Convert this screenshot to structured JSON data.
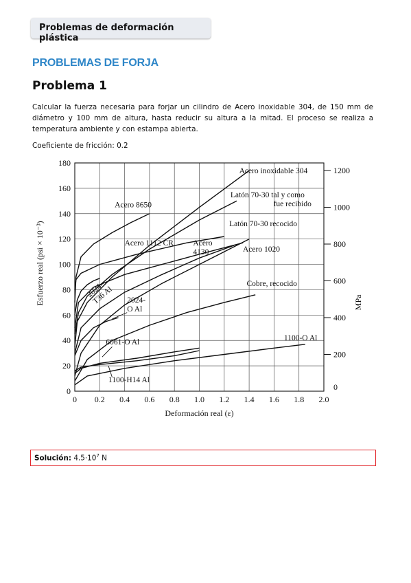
{
  "header": {
    "tab_label": "Problemas de deformación plástica"
  },
  "section": {
    "title": "PROBLEMAS DE FORJA"
  },
  "problem": {
    "title": "Problema 1",
    "statement": "Calcular la fuerza necesaria para forjar un cilindro de Acero inoxidable 304, de 150 mm de diámetro y 100 mm de altura, hasta reducir su altura a la mitad. El proceso se realiza a temperatura ambiente y con estampa abierta.",
    "friction": "Coeficiente de fricción: 0.2"
  },
  "solution": {
    "label": "Solución:",
    "value_base": "4.5·10",
    "value_exp": "7",
    "value_unit": " N"
  },
  "chart_data": {
    "type": "line",
    "xlabel": "Deformación real (ε)",
    "ylabel": "Esfuerzo real (psi × 10⁻³)",
    "y2label": "MPa",
    "xlim": [
      0,
      2.0
    ],
    "ylim": [
      0,
      180
    ],
    "x_ticks": [
      "0",
      "0.2",
      "0.4",
      "0.6",
      "0.8",
      "1.0",
      "1.2",
      "1.4",
      "1.6",
      "1.8",
      "2.0"
    ],
    "y_ticks": [
      "0",
      "20",
      "40",
      "60",
      "80",
      "100",
      "120",
      "140",
      "160",
      "180"
    ],
    "y2_ticks": [
      "200",
      "400",
      "600",
      "800",
      "1000",
      "1200"
    ],
    "grid": true,
    "series": [
      {
        "name": "Acero inoxidable 304",
        "x": [
          0,
          0.02,
          0.1,
          0.3,
          0.6,
          1.0,
          1.4
        ],
        "y": [
          35,
          55,
          70,
          90,
          115,
          145,
          174
        ]
      },
      {
        "name": "Latón 70-30 tal y como fue recibido",
        "x": [
          0,
          0.03,
          0.1,
          0.3,
          0.6,
          1.0,
          1.3
        ],
        "y": [
          45,
          62,
          75,
          92,
          112,
          135,
          150
        ]
      },
      {
        "name": "Latón 70-30 recocido",
        "x": [
          0,
          0.05,
          0.2,
          0.4,
          0.7,
          1.0,
          1.4
        ],
        "y": [
          12,
          30,
          52,
          68,
          85,
          100,
          120
        ]
      },
      {
        "name": "Acero 8650",
        "x": [
          0,
          0.01,
          0.05,
          0.15,
          0.3,
          0.45,
          0.6
        ],
        "y": [
          70,
          90,
          106,
          116,
          125,
          133,
          140
        ]
      },
      {
        "name": "Acero 1112 CR",
        "x": [
          0,
          0.01,
          0.05,
          0.2,
          0.5,
          0.9,
          1.2
        ],
        "y": [
          80,
          88,
          93,
          100,
          108,
          117,
          122
        ]
      },
      {
        "name": "Acero 4130",
        "x": [
          0,
          0.03,
          0.15,
          0.4,
          0.7,
          1.0,
          1.35
        ],
        "y": [
          50,
          70,
          82,
          92,
          100,
          108,
          117
        ]
      },
      {
        "name": "Acero 1020",
        "x": [
          0,
          0.05,
          0.2,
          0.4,
          0.7,
          1.0,
          1.28
        ],
        "y": [
          30,
          50,
          65,
          78,
          92,
          105,
          115
        ]
      },
      {
        "name": "Cobre, recocido",
        "x": [
          0,
          0.1,
          0.3,
          0.6,
          0.9,
          1.2,
          1.45
        ],
        "y": [
          8,
          25,
          40,
          52,
          62,
          70,
          76
        ]
      },
      {
        "name": "2024-T36 Al",
        "x": [
          0,
          0.02,
          0.05,
          0.1,
          0.15,
          0.2
        ],
        "y": [
          60,
          72,
          79,
          84,
          87,
          89
        ]
      },
      {
        "name": "2024-O Al",
        "x": [
          0,
          0.05,
          0.15,
          0.25,
          0.35
        ],
        "y": [
          28,
          40,
          50,
          55,
          58
        ]
      },
      {
        "name": "6061-O Al",
        "x": [
          0,
          0.05,
          0.2,
          0.5,
          0.8,
          1.0
        ],
        "y": [
          14,
          18,
          22,
          26,
          31,
          34
        ]
      },
      {
        "name": "1100-H14 Al",
        "x": [
          0,
          0.05,
          0.2,
          0.5,
          0.8,
          1.0
        ],
        "y": [
          16,
          19,
          21,
          24,
          28,
          32
        ]
      },
      {
        "name": "1100-O Al",
        "x": [
          0,
          0.1,
          0.4,
          0.8,
          1.2,
          1.6,
          1.85
        ],
        "y": [
          5,
          12,
          18,
          24,
          29,
          34,
          37
        ]
      }
    ]
  }
}
